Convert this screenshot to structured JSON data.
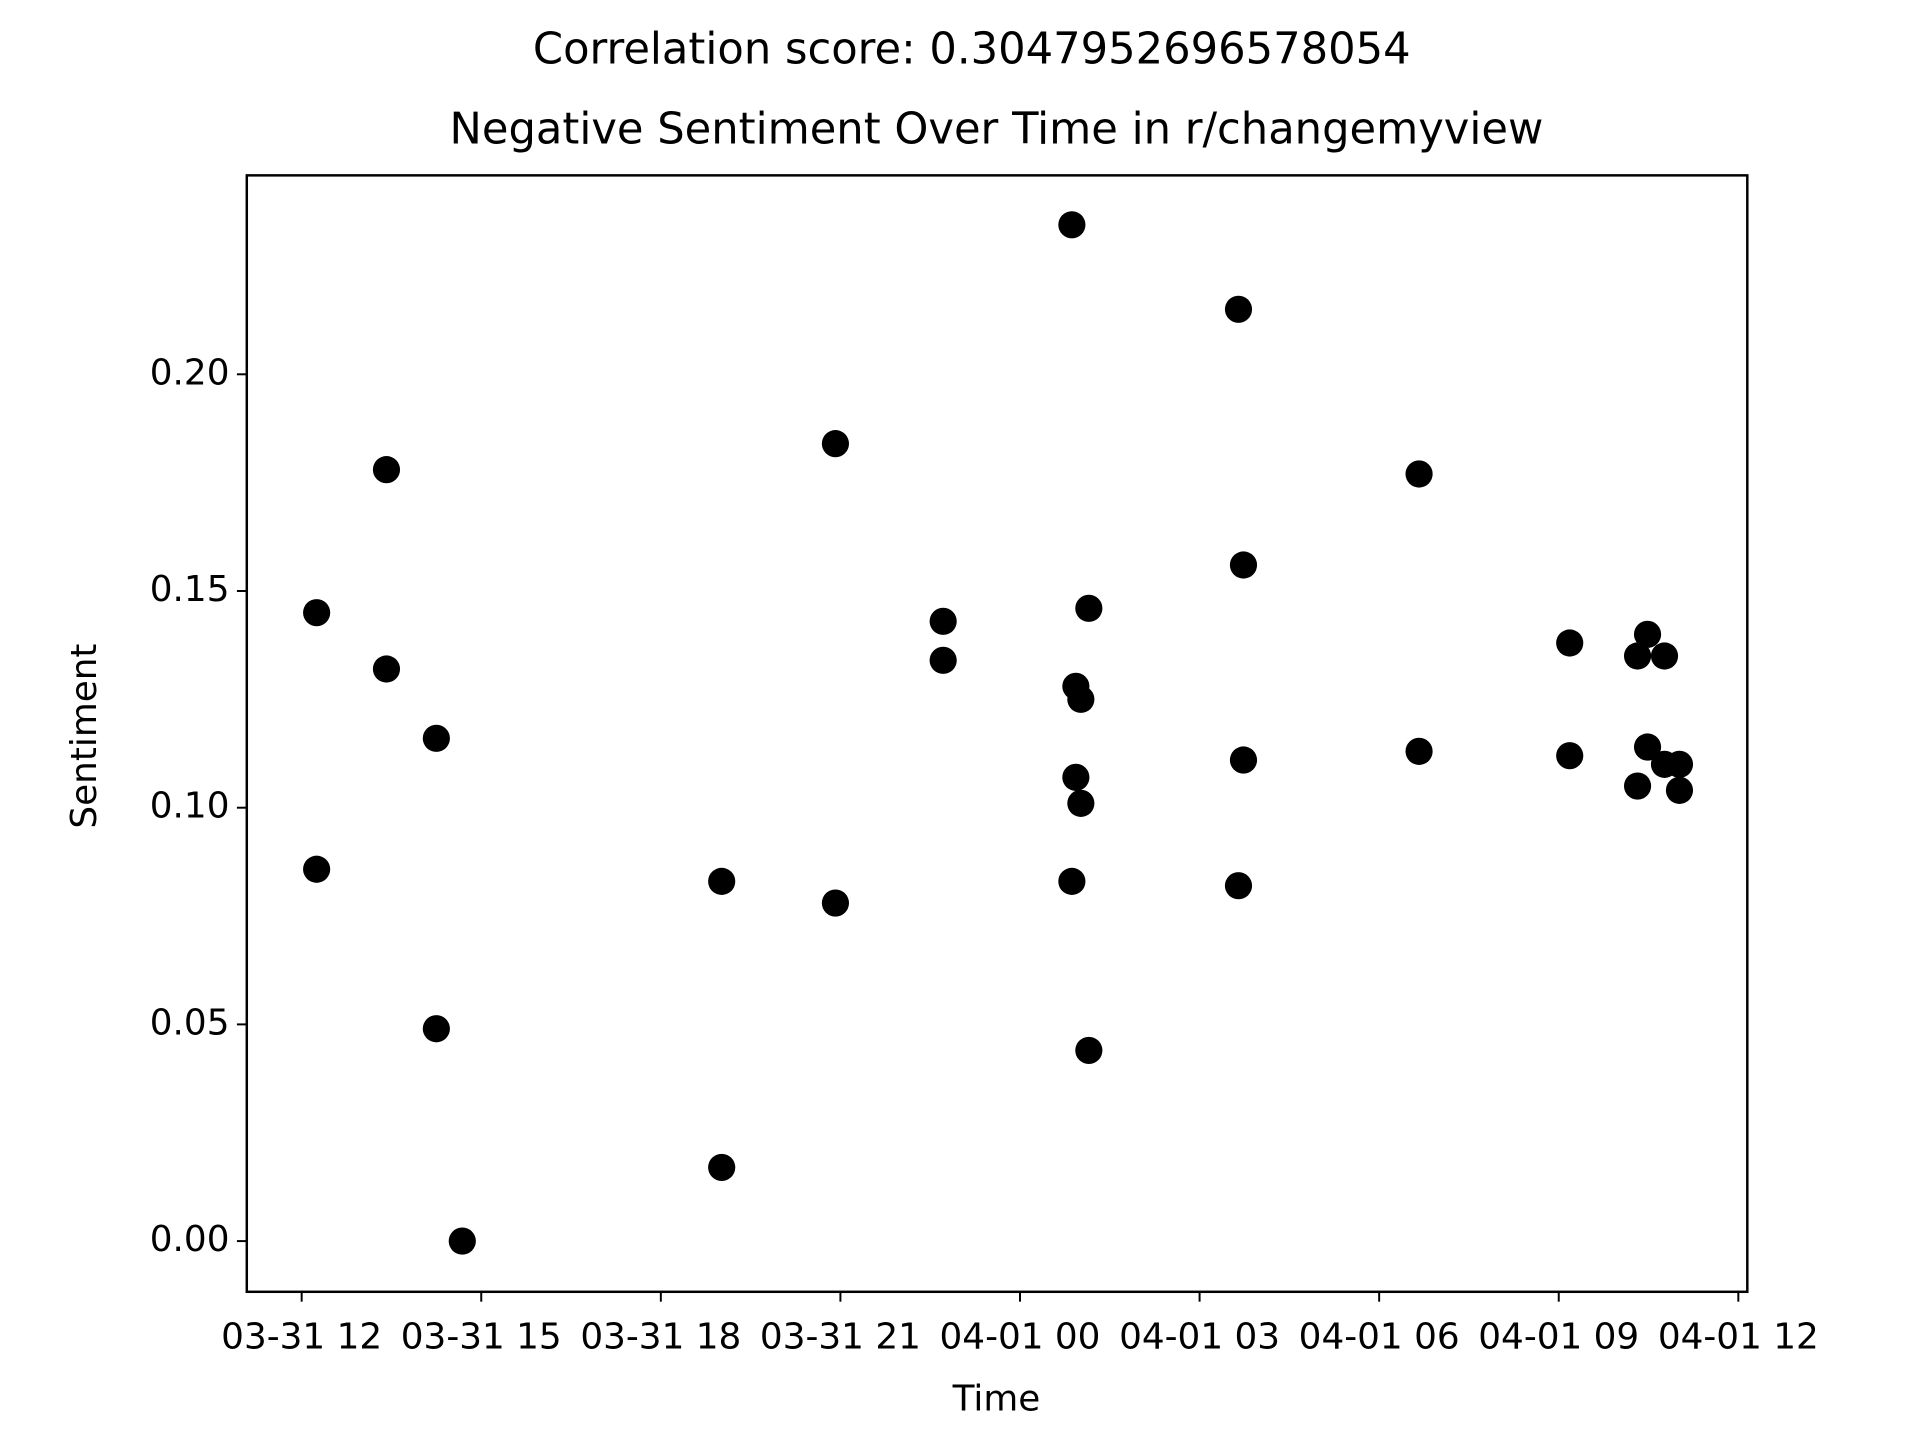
{
  "chart_data": {
    "type": "scatter",
    "suptitle": "Correlation score: 0.3047952696578054",
    "title": "Negative Sentiment Over Time in r/changemyview",
    "x_label": "Time",
    "y_label": "Sentiment",
    "color": "#000000",
    "x": [
      "03-31 12:15",
      "03-31 12:15",
      "03-31 13:25",
      "03-31 13:25",
      "03-31 14:15",
      "03-31 14:15",
      "03-31 14:41",
      "03-31 19:01",
      "03-31 19:01",
      "03-31 20:55",
      "03-31 20:55",
      "03-31 22:43",
      "03-31 22:43",
      "04-01 00:52",
      "04-01 00:52",
      "04-01 00:56",
      "04-01 00:56",
      "04-01 01:01",
      "04-01 01:01",
      "04-01 01:09",
      "04-01 01:09",
      "04-01 03:39",
      "04-01 03:39",
      "04-01 03:44",
      "04-01 03:44",
      "04-01 06:40",
      "04-01 06:40",
      "04-01 09:11",
      "04-01 09:11",
      "04-01 10:19",
      "04-01 10:19",
      "04-01 10:29",
      "04-01 10:29",
      "04-01 10:46",
      "04-01 10:46",
      "04-01 11:01",
      "04-01 11:01"
    ],
    "values": [
      0.145,
      0.0858,
      0.178,
      0.132,
      0.116,
      0.049,
      0.0,
      0.083,
      0.017,
      0.184,
      0.078,
      0.143,
      0.134,
      0.2345,
      0.083,
      0.128,
      0.107,
      0.125,
      0.101,
      0.146,
      0.044,
      0.215,
      0.082,
      0.156,
      0.111,
      0.177,
      0.113,
      0.138,
      0.112,
      0.135,
      0.105,
      0.14,
      0.114,
      0.135,
      0.11,
      0.11,
      0.104
    ],
    "xlim": [
      "03-31 11:05",
      "04-01 12:09"
    ],
    "xticks": [
      "03-31 12",
      "03-31 15",
      "03-31 18",
      "03-31 21",
      "04-01 00",
      "04-01 03",
      "04-01 06",
      "04-01 09",
      "04-01 12"
    ],
    "ylim": [
      -0.0117,
      0.2459
    ],
    "yticks": [
      {
        "value": 0,
        "label": "0.00"
      },
      {
        "value": 0.05,
        "label": "0.05"
      },
      {
        "value": 0.1,
        "label": "0.10"
      },
      {
        "value": 0.15,
        "label": "0.15"
      },
      {
        "value": 0.2,
        "label": "0.20"
      }
    ],
    "grid": false
  }
}
